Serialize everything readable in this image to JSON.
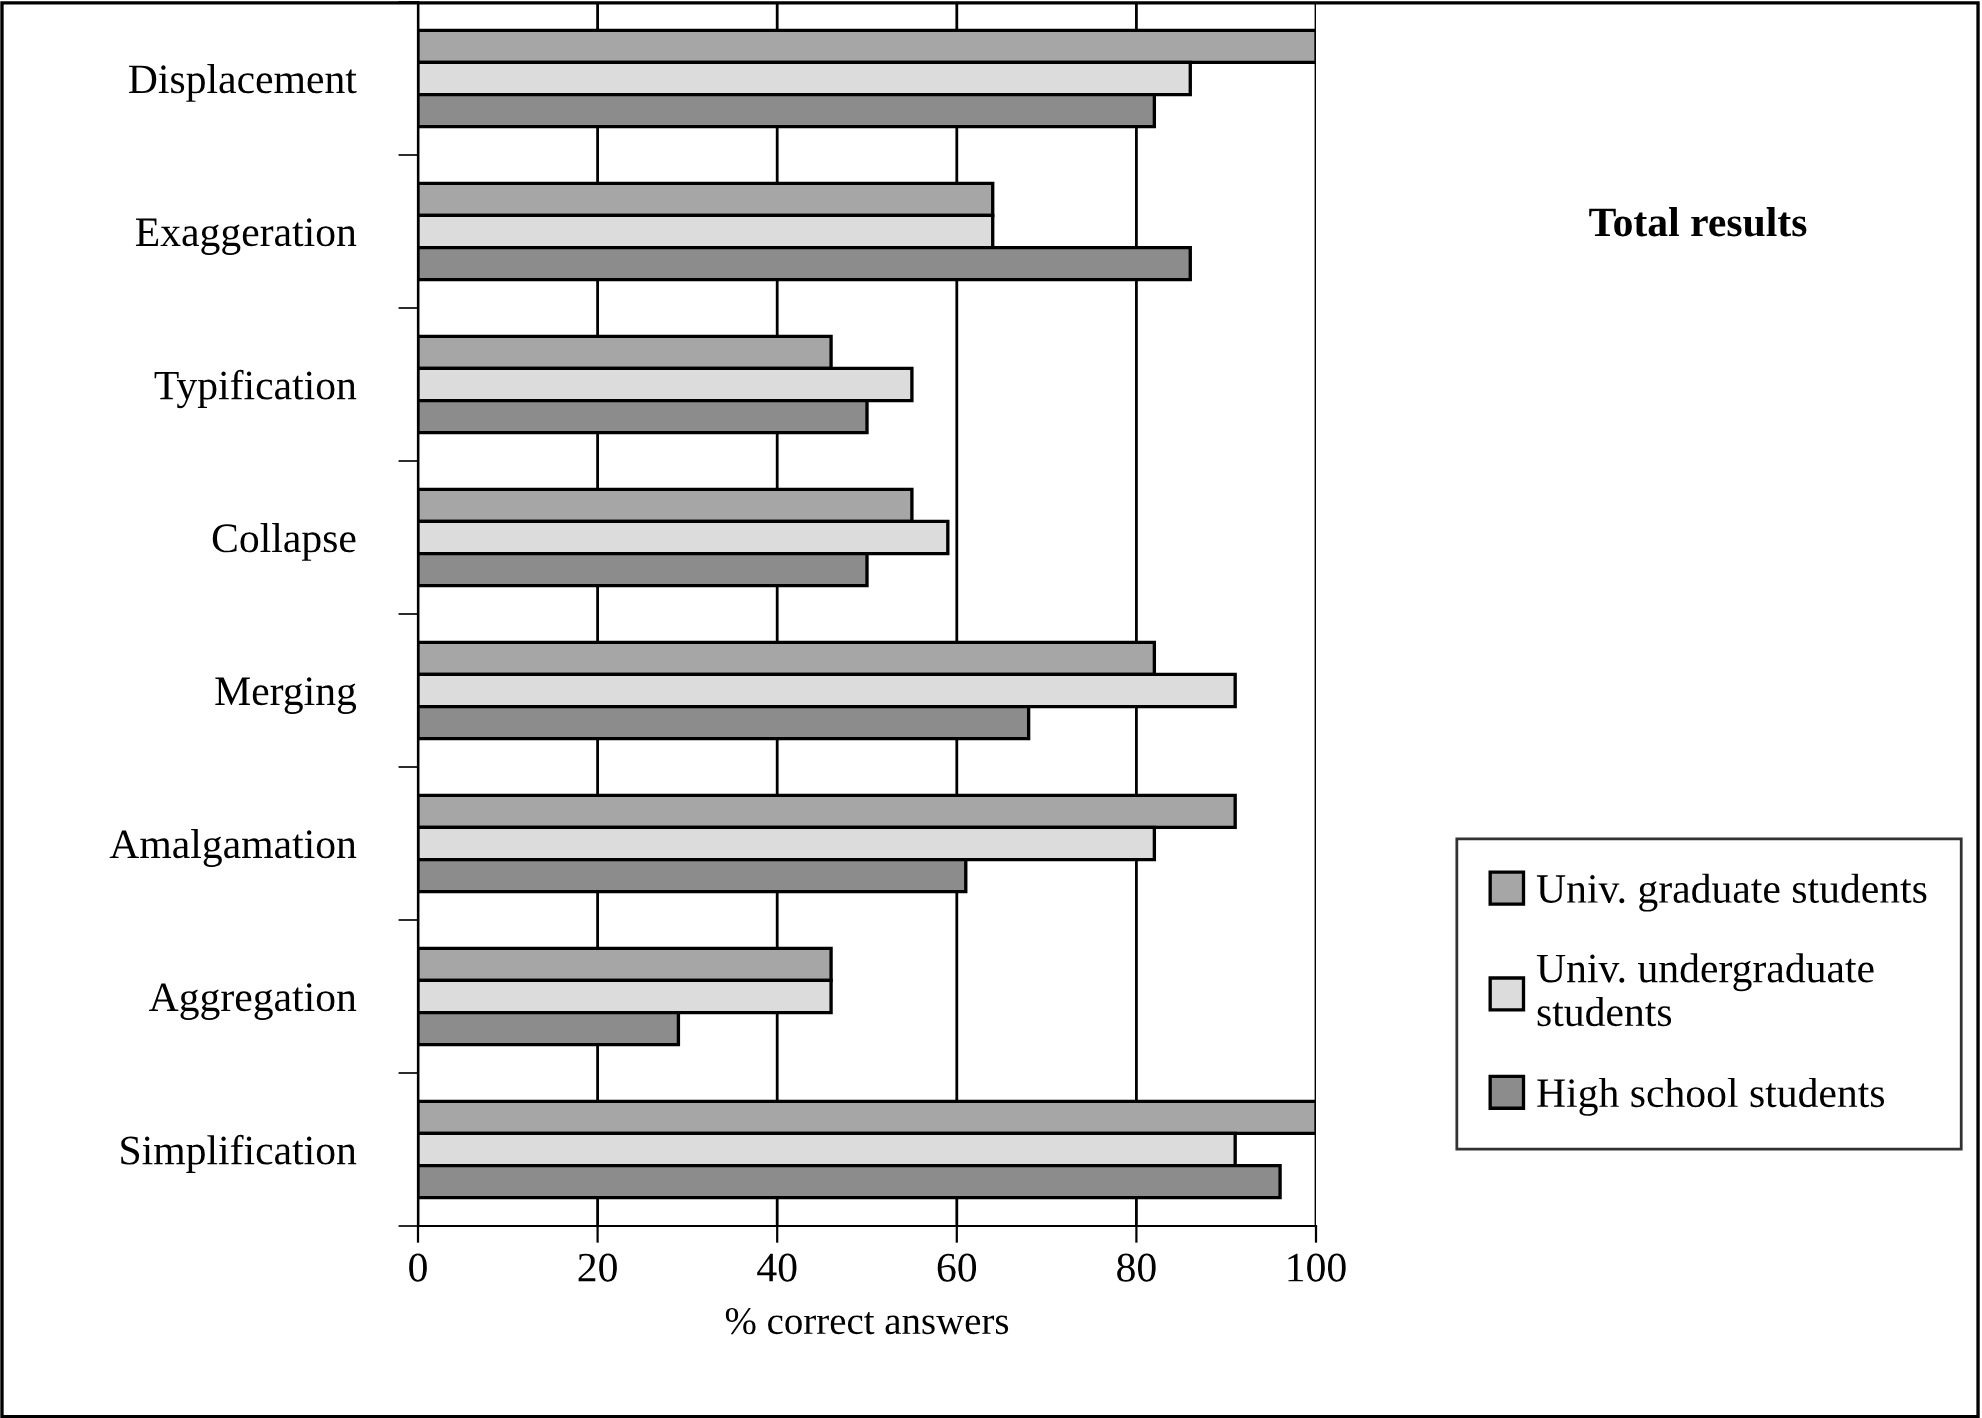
{
  "chart_data": {
    "type": "bar",
    "orientation": "horizontal",
    "title": "Total results",
    "xlabel": "% correct answers",
    "categories": [
      "Displacement",
      "Exaggeration",
      "Typification",
      "Collapse",
      "Merging",
      "Amalgamation",
      "Aggregation",
      "Simplification"
    ],
    "series": [
      {
        "name": "Univ. graduate students",
        "color": "#a6a6a6",
        "values": [
          100,
          64,
          46,
          55,
          82,
          91,
          46,
          100
        ]
      },
      {
        "name": "Univ. undergraduate\nstudents",
        "color": "#dcdcdc",
        "values": [
          86,
          64,
          55,
          59,
          91,
          82,
          46,
          91
        ]
      },
      {
        "name": "High school students",
        "color": "#8c8c8c",
        "values": [
          82,
          86,
          50,
          50,
          68,
          61,
          29,
          96
        ]
      }
    ],
    "xlim": [
      0,
      100
    ],
    "xticks": [
      0,
      20,
      40,
      60,
      80,
      100
    ],
    "grid": "x",
    "legend": "right"
  }
}
